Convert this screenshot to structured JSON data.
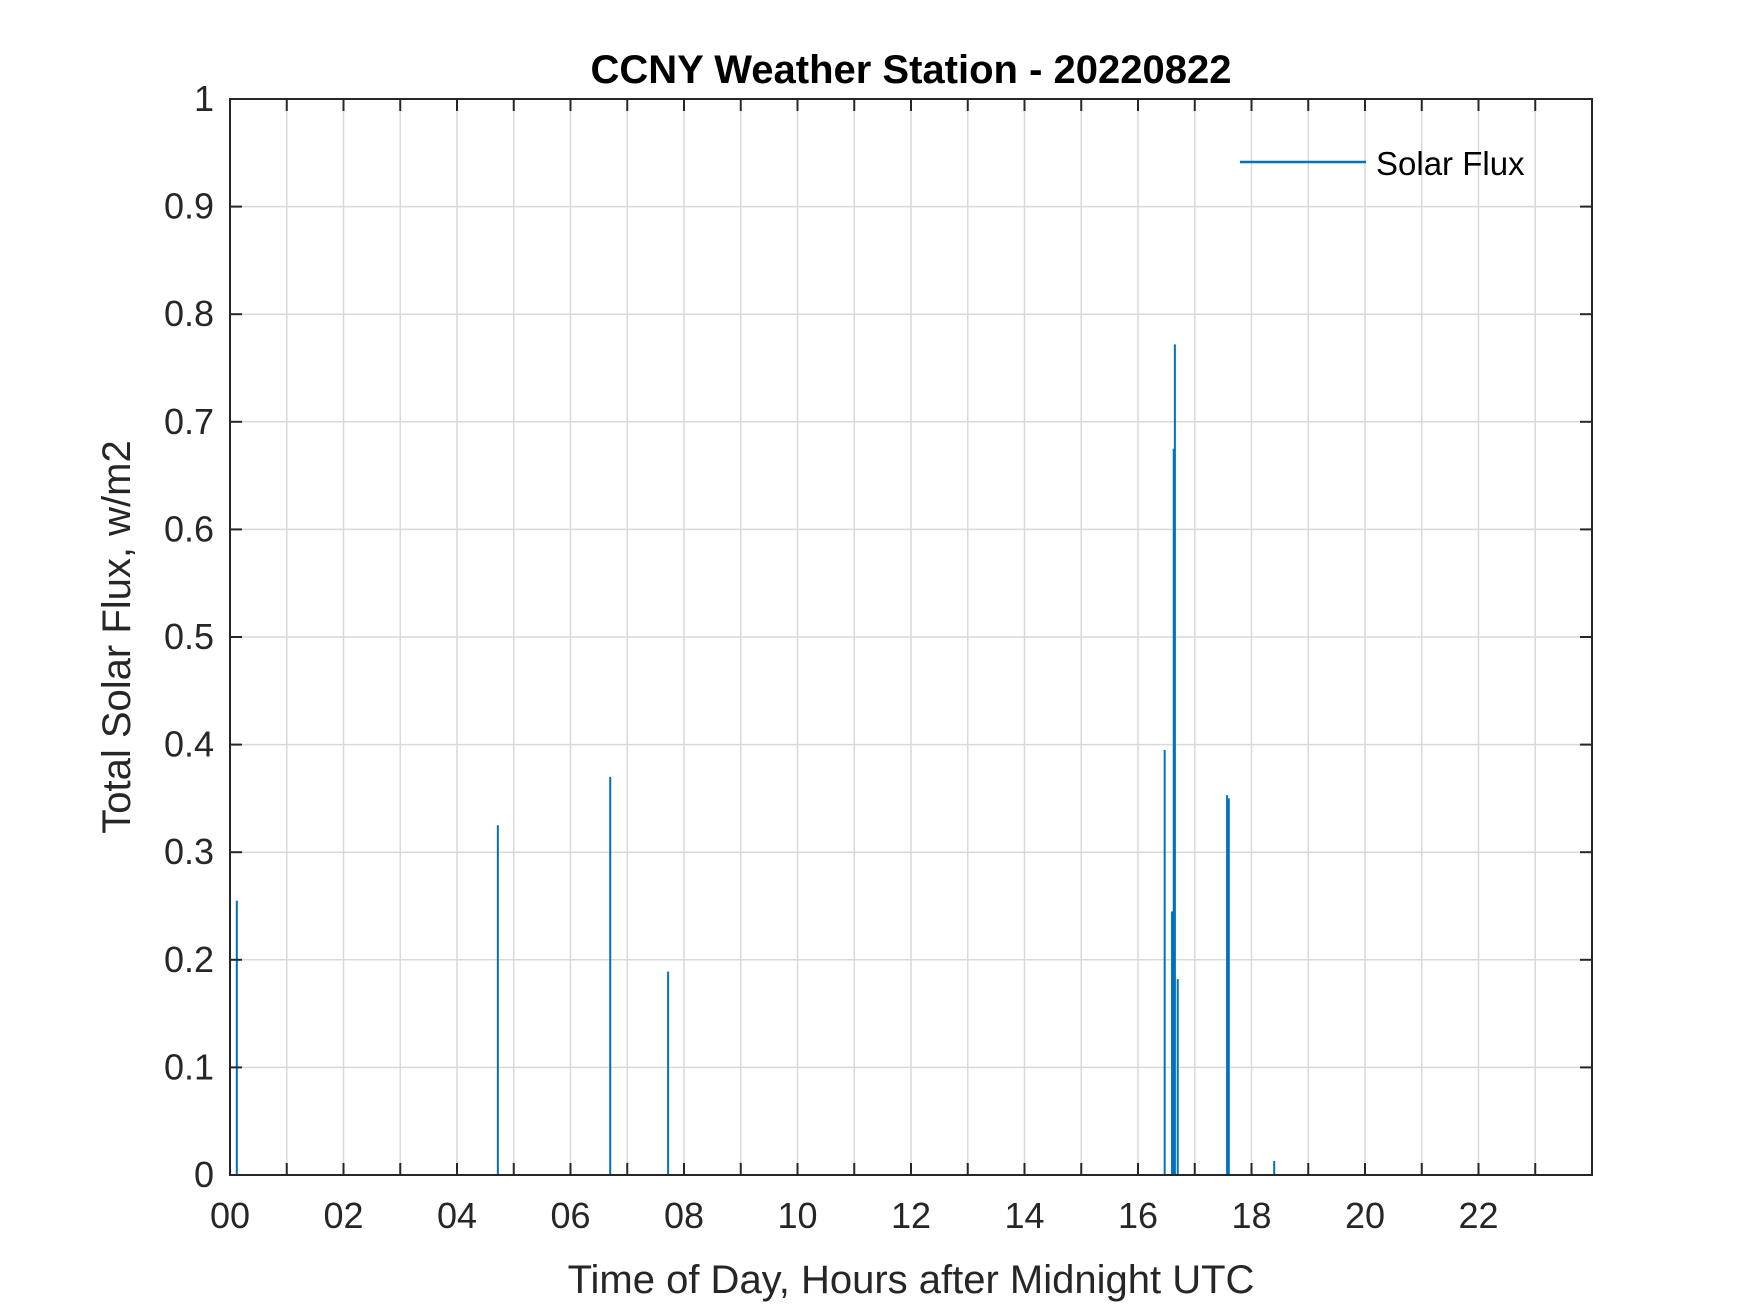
{
  "chart_data": {
    "type": "line",
    "title": "CCNY Weather Station - 20220822",
    "xlabel": "Time of Day, Hours after Midnight UTC",
    "ylabel": "Total Solar Flux, w/m2",
    "xlim": [
      0,
      24
    ],
    "ylim": [
      0,
      1
    ],
    "x_ticks": [
      0,
      2,
      4,
      6,
      8,
      10,
      12,
      14,
      16,
      18,
      20,
      22
    ],
    "x_tick_labels": [
      "00",
      "02",
      "04",
      "06",
      "08",
      "10",
      "12",
      "14",
      "16",
      "18",
      "20",
      "22"
    ],
    "y_ticks": [
      0,
      0.1,
      0.2,
      0.3,
      0.4,
      0.5,
      0.6,
      0.7,
      0.8,
      0.9,
      1
    ],
    "y_tick_labels": [
      "0",
      "0.1",
      "0.2",
      "0.3",
      "0.4",
      "0.5",
      "0.6",
      "0.7",
      "0.8",
      "0.9",
      "1"
    ],
    "minor_x_grid_step": 1,
    "grid": true,
    "legend_position": "top-right",
    "series": [
      {
        "name": "Solar Flux",
        "color": "#0072BD",
        "points": [
          {
            "x": 0.12,
            "y": 0.255
          },
          {
            "x": 4.72,
            "y": 0.325
          },
          {
            "x": 6.7,
            "y": 0.37
          },
          {
            "x": 7.72,
            "y": 0.189
          },
          {
            "x": 16.47,
            "y": 0.395
          },
          {
            "x": 16.6,
            "y": 0.245
          },
          {
            "x": 16.63,
            "y": 0.675
          },
          {
            "x": 16.65,
            "y": 0.772
          },
          {
            "x": 16.7,
            "y": 0.182
          },
          {
            "x": 17.57,
            "y": 0.353
          },
          {
            "x": 17.6,
            "y": 0.35
          },
          {
            "x": 18.4,
            "y": 0.013
          }
        ]
      }
    ]
  }
}
